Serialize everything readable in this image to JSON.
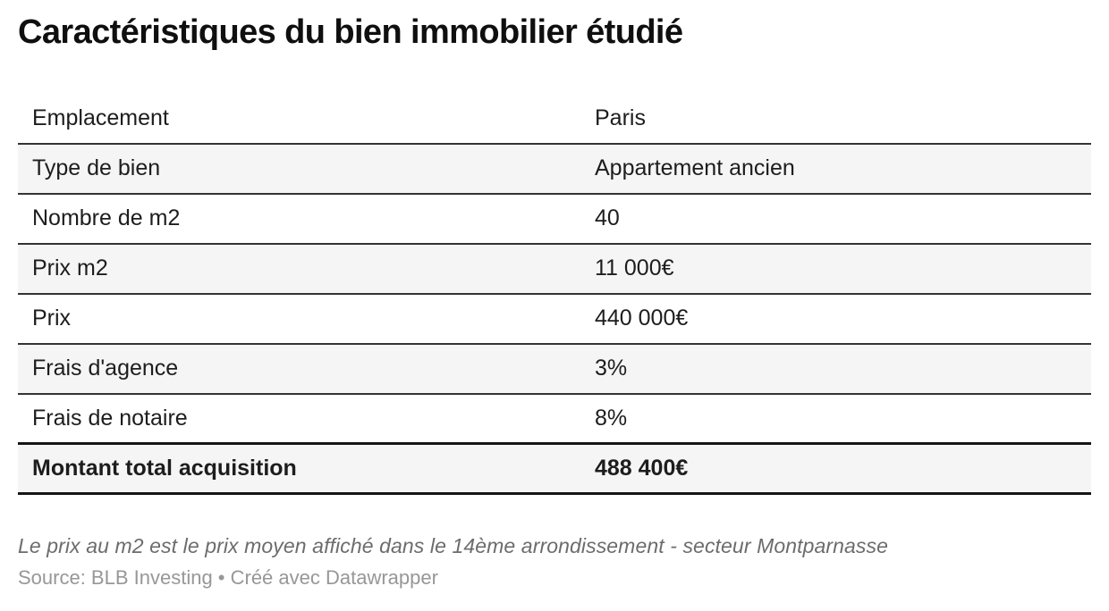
{
  "chart_data": {
    "type": "table",
    "title": "Caractéristiques du bien immobilier étudié",
    "rows": [
      {
        "label": "Emplacement",
        "value": "Paris",
        "emphasis": false
      },
      {
        "label": "Type de bien",
        "value": "Appartement ancien",
        "emphasis": false
      },
      {
        "label": "Nombre de m2",
        "value": "40",
        "emphasis": false
      },
      {
        "label": "Prix m2",
        "value": "11 000€",
        "emphasis": false
      },
      {
        "label": "Prix",
        "value": "440 000€",
        "emphasis": false
      },
      {
        "label": "Frais d'agence",
        "value": "3%",
        "emphasis": false
      },
      {
        "label": "Frais de notaire",
        "value": "8%",
        "emphasis": false
      },
      {
        "label": "Montant total acquisition",
        "value": "488 400€",
        "emphasis": true
      }
    ],
    "note": "Le prix au m2 est le prix moyen affiché dans le 14ème arrondissement - secteur Montparnasse",
    "source": "Source: BLB Investing • Créé avec Datawrapper",
    "layout_hints": {
      "striped_rows": "even rows gray #f5f5f5",
      "grid": "horizontal rules only",
      "total_row": "bold with 3px rules above and below"
    }
  }
}
